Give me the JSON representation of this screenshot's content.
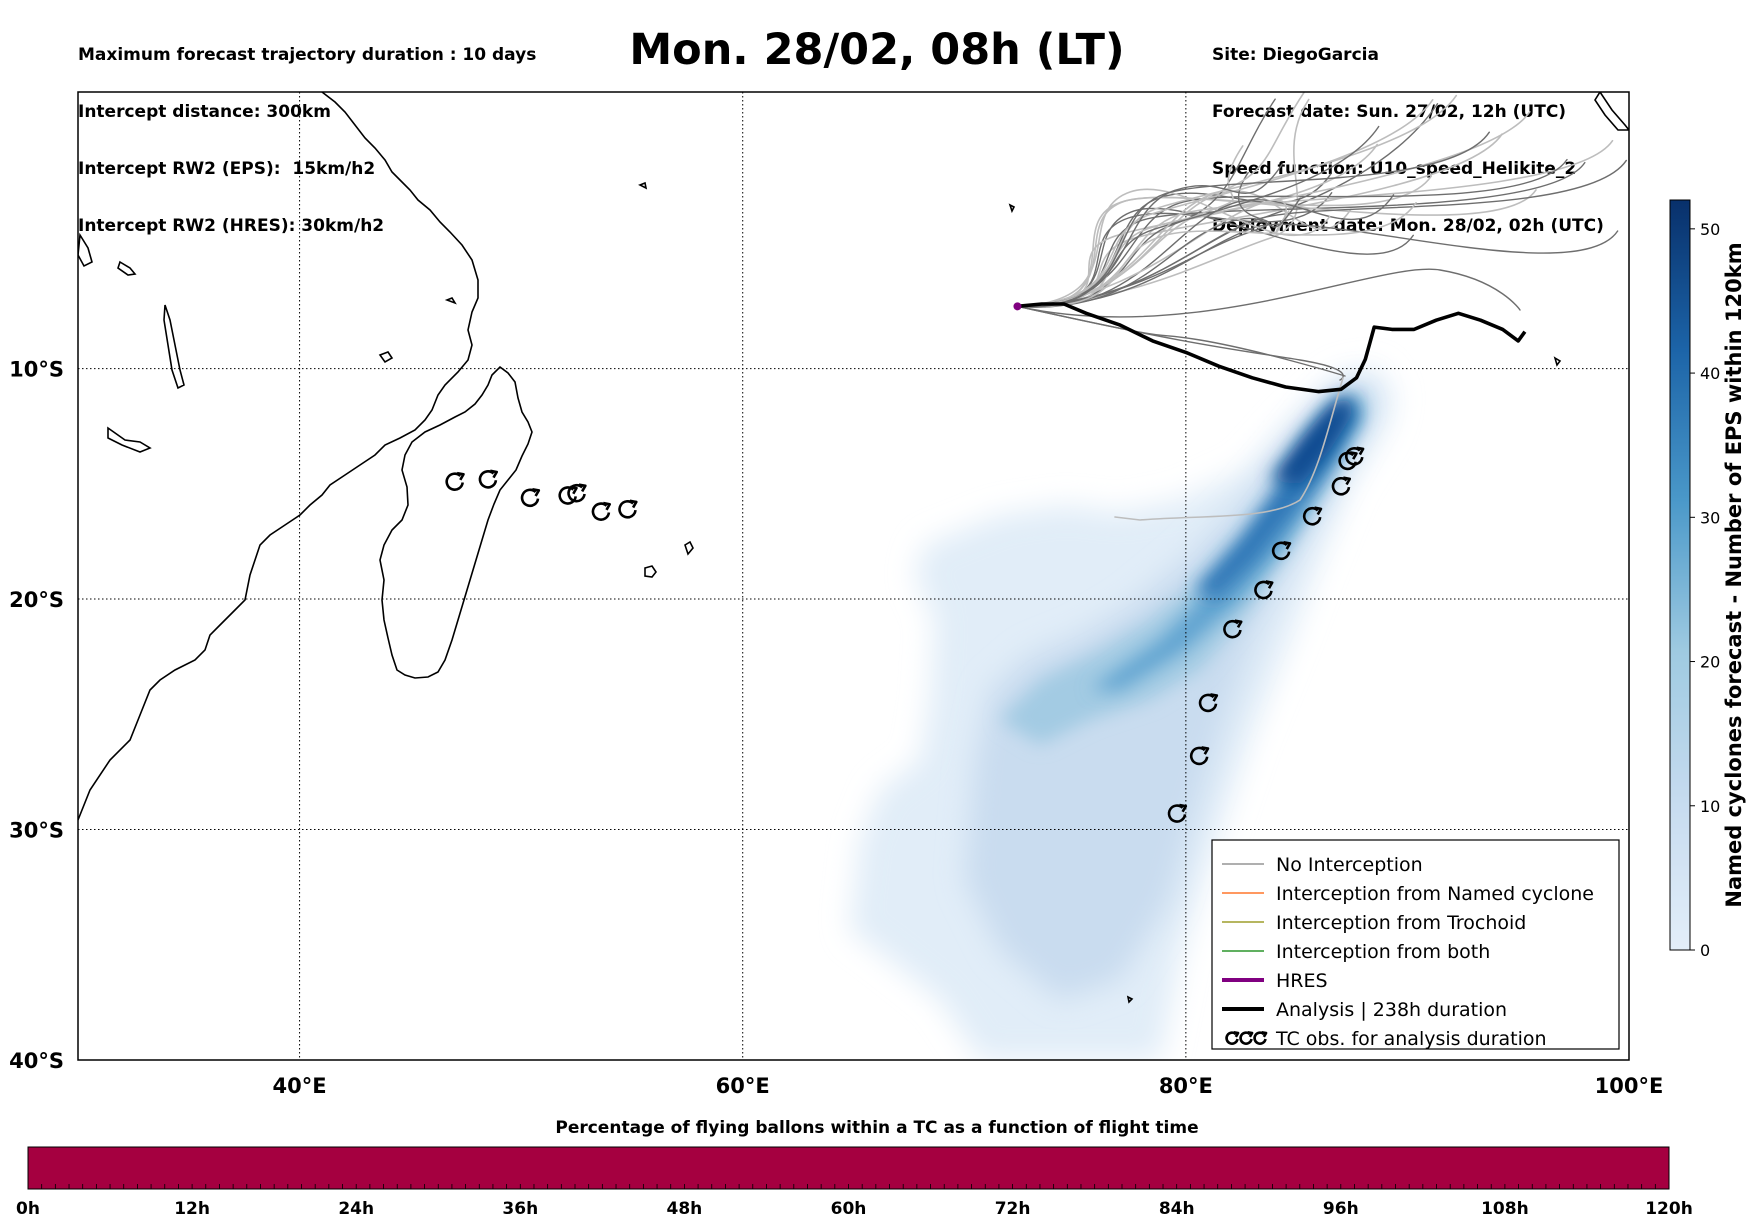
{
  "header": {
    "left_lines": [
      "Maximum forecast trajectory duration : 10 days",
      "Intercept distance: 300km",
      "Intercept RW2 (EPS):  15km/h2",
      "Intercept RW2 (HRES): 30km/h2"
    ],
    "title": "Mon. 28/02, 08h (LT)",
    "right_lines": [
      "Site: DiegoGarcia",
      "Forecast date: Sun. 27/02, 12h (UTC)",
      "Speed function: U10_speed_Helikite_2",
      "Deployment date: Mon. 28/02, 02h (UTC)"
    ]
  },
  "map": {
    "lon_range": [
      30,
      100
    ],
    "lat_range": [
      -40,
      2
    ],
    "lon_ticks": [
      {
        "v": 40,
        "label": "40°E"
      },
      {
        "v": 60,
        "label": "60°E"
      },
      {
        "v": 80,
        "label": "80°E"
      },
      {
        "v": 100,
        "label": "100°E"
      }
    ],
    "lat_ticks": [
      {
        "v": -10,
        "label": "10°S"
      },
      {
        "v": -20,
        "label": "20°S"
      },
      {
        "v": -30,
        "label": "30°S"
      },
      {
        "v": -40,
        "label": "40°S"
      }
    ],
    "launch_site": [
      72.4,
      -7.3
    ],
    "tc_obs": [
      [
        47,
        -14.9
      ],
      [
        48.5,
        -14.8
      ],
      [
        50.4,
        -15.6
      ],
      [
        52.1,
        -15.5
      ],
      [
        52.5,
        -15.4
      ],
      [
        53.6,
        -16.2
      ],
      [
        54.8,
        -16.1
      ],
      [
        79.6,
        -29.3
      ],
      [
        80.6,
        -26.8
      ],
      [
        81,
        -24.5
      ],
      [
        82.1,
        -21.3
      ],
      [
        83.5,
        -19.6
      ],
      [
        84.3,
        -17.9
      ],
      [
        85.7,
        -16.4
      ],
      [
        87,
        -15.1
      ],
      [
        87.3,
        -14
      ],
      [
        87.6,
        -13.8
      ]
    ],
    "analysis_track": [
      [
        72.4,
        -7.3
      ],
      [
        73.5,
        -7.2
      ],
      [
        74.5,
        -7.2
      ],
      [
        75.5,
        -7.6
      ],
      [
        77,
        -8.1
      ],
      [
        78.5,
        -8.8
      ],
      [
        80,
        -9.3
      ],
      [
        81.5,
        -9.9
      ],
      [
        83,
        -10.4
      ],
      [
        84.5,
        -10.8
      ],
      [
        86,
        -11
      ],
      [
        87,
        -10.9
      ],
      [
        87.7,
        -10.4
      ],
      [
        88.1,
        -9.6
      ],
      [
        88.3,
        -8.9
      ],
      [
        88.5,
        -8.2
      ],
      [
        89.3,
        -8.3
      ],
      [
        90.3,
        -8.3
      ],
      [
        91.3,
        -7.9
      ],
      [
        92.3,
        -7.6
      ],
      [
        93.3,
        -7.9
      ],
      [
        94.3,
        -8.3
      ],
      [
        95,
        -8.8
      ],
      [
        95.3,
        -8.4
      ]
    ],
    "no_interception_gray_tracks": 30,
    "named_cyclone_density_colors": [
      "#deebf7",
      "#c6dbef",
      "#9ecae1",
      "#6baed6",
      "#4292c6",
      "#2171b5",
      "#08519c",
      "#08306b"
    ]
  },
  "legend": {
    "items": [
      {
        "label": "No Interception",
        "color": "#7f7f7f"
      },
      {
        "label": "Interception from Named cyclone",
        "color": "#ff5a00"
      },
      {
        "label": "Interception from Trochoid",
        "color": "#8b8b00"
      },
      {
        "label": "Interception from both",
        "color": "#008000"
      },
      {
        "label": "HRES",
        "color": "#800080"
      },
      {
        "label": "Analysis | 238h duration",
        "color": "#000000"
      },
      {
        "label": "TC obs. for analysis duration",
        "color": "#000000",
        "icon": "cyclone-symbol-icon"
      }
    ]
  },
  "colorbar": {
    "label": "Named cyclones forecast - Number of EPS within 120km",
    "ticks": [
      "0",
      "10",
      "20",
      "30",
      "40",
      "50"
    ],
    "max": 52
  },
  "bottom_bar": {
    "title": "Percentage of flying ballons within a TC as a function of flight time",
    "color": "#a50040",
    "tick_labels": [
      "0h",
      "12h",
      "24h",
      "36h",
      "48h",
      "60h",
      "72h",
      "84h",
      "96h",
      "108h",
      "120h"
    ]
  }
}
